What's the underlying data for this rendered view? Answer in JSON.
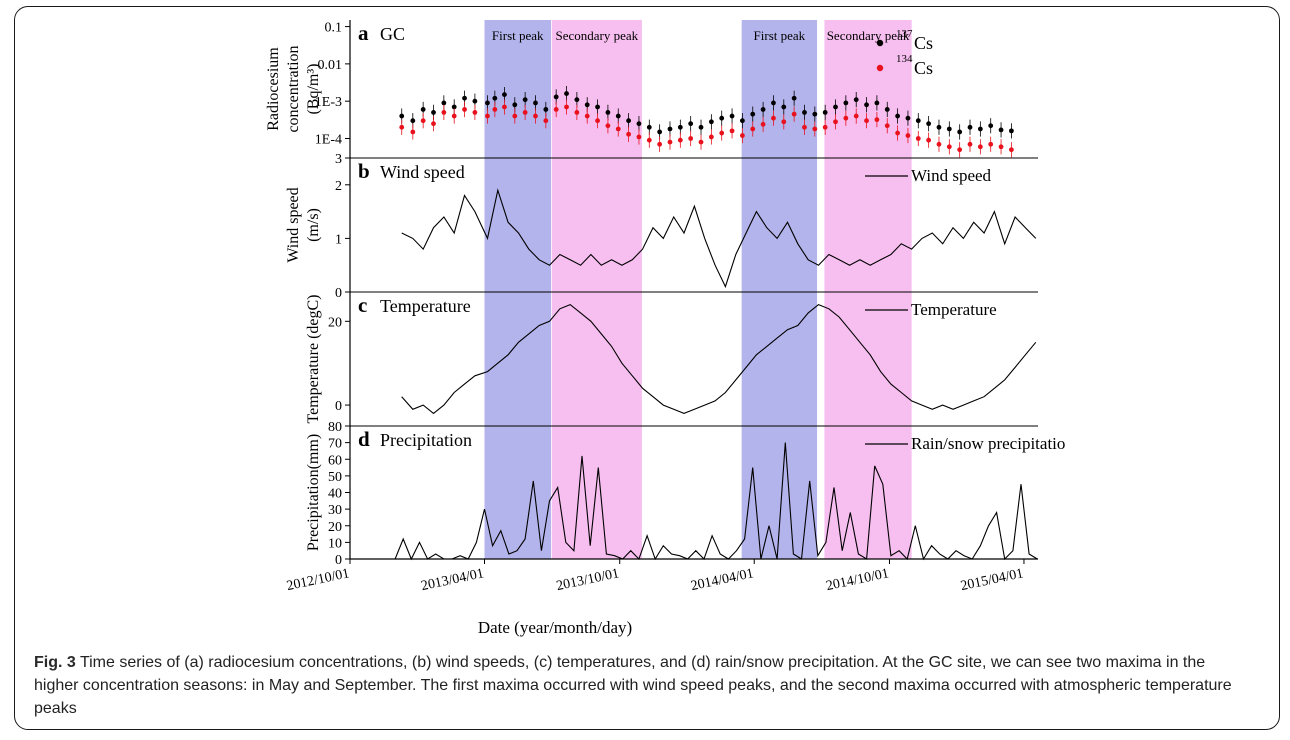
{
  "caption": {
    "label": "Fig. 3",
    "text": "Time series of (a) radiocesium concentrations, (b) wind speeds, (c) temperatures, and (d) rain/snow precipitation. At the GC site, we can see two maxima in the higher concentration seasons: in May and September. The first maxima occurred with wind speed peaks, and the second maxima occurred with atmospheric temperature peaks"
  },
  "chart_data": {
    "type": "line",
    "x_axis": {
      "label": "Date (year/month/day)",
      "range": [
        "2012/10/01",
        "2015/04/20"
      ],
      "ticks": [
        "2012/10/01",
        "2013/04/01",
        "2013/10/01",
        "2014/04/01",
        "2014/10/01",
        "2015/04/01"
      ]
    },
    "bands": [
      {
        "label": "First peak",
        "start": "2013/04/01",
        "end": "2013/06/30",
        "color": "#b4b4ec"
      },
      {
        "label": "Secondary peak",
        "start": "2013/07/01",
        "end": "2013/10/31",
        "color": "#f7bff0"
      },
      {
        "label": "First peak",
        "start": "2014/03/15",
        "end": "2014/06/25",
        "color": "#b4b4ec"
      },
      {
        "label": "Secondary peak",
        "start": "2014/07/05",
        "end": "2014/10/31",
        "color": "#f7bff0"
      }
    ],
    "panels": [
      {
        "letter": "a",
        "title": "GC",
        "ylabel_lines": [
          "Radiocesium",
          "concentration",
          "(Bq/m³)"
        ],
        "scale": "log",
        "ylim": [
          3e-05,
          0.15
        ],
        "ytick_labels": [
          "0.1",
          "0.01",
          "1E-3",
          "1E-4",
          "3"
        ],
        "legend": [
          {
            "mass": "137",
            "element": "Cs",
            "color": "#000000"
          },
          {
            "mass": "134",
            "element": "Cs",
            "color": "#e8111c"
          }
        ],
        "series": [
          {
            "name": "137Cs",
            "color": "#000000",
            "x": [
              "2012/12/10",
              "2012/12/25",
              "2013/01/08",
              "2013/01/22",
              "2013/02/05",
              "2013/02/19",
              "2013/03/05",
              "2013/03/19",
              "2013/04/05",
              "2013/04/15",
              "2013/04/28",
              "2013/05/12",
              "2013/05/26",
              "2013/06/09",
              "2013/06/23",
              "2013/07/07",
              "2013/07/21",
              "2013/08/04",
              "2013/08/18",
              "2013/09/01",
              "2013/09/15",
              "2013/09/29",
              "2013/10/13",
              "2013/10/27",
              "2013/11/10",
              "2013/11/24",
              "2013/12/08",
              "2013/12/22",
              "2014/01/05",
              "2014/01/19",
              "2014/02/02",
              "2014/02/16",
              "2014/03/02",
              "2014/03/16",
              "2014/03/30",
              "2014/04/13",
              "2014/04/27",
              "2014/05/11",
              "2014/05/25",
              "2014/06/08",
              "2014/06/22",
              "2014/07/06",
              "2014/07/20",
              "2014/08/03",
              "2014/08/17",
              "2014/08/31",
              "2014/09/14",
              "2014/09/28",
              "2014/10/12",
              "2014/10/26",
              "2014/11/09",
              "2014/11/23",
              "2014/12/07",
              "2014/12/21",
              "2015/01/04",
              "2015/01/18",
              "2015/02/01",
              "2015/02/15",
              "2015/03/01",
              "2015/03/15"
            ],
            "y": [
              0.0004,
              0.0003,
              0.0006,
              0.0005,
              0.0009,
              0.0007,
              0.0012,
              0.001,
              0.0009,
              0.0012,
              0.0015,
              0.0008,
              0.0011,
              0.0009,
              0.0006,
              0.0013,
              0.0016,
              0.0011,
              0.0008,
              0.0007,
              0.0005,
              0.0004,
              0.0003,
              0.00025,
              0.0002,
              0.00015,
              0.00018,
              0.0002,
              0.00025,
              0.0002,
              0.00028,
              0.00035,
              0.0004,
              0.0003,
              0.00045,
              0.0006,
              0.0009,
              0.0007,
              0.0012,
              0.0005,
              0.00045,
              0.0005,
              0.0007,
              0.0009,
              0.0011,
              0.0008,
              0.0009,
              0.0006,
              0.0004,
              0.00035,
              0.0003,
              0.00025,
              0.0002,
              0.00018,
              0.00015,
              0.0002,
              0.00018,
              0.00022,
              0.00017,
              0.00016
            ]
          },
          {
            "name": "134Cs",
            "color": "#e8111c",
            "x": [
              "2012/12/10",
              "2012/12/25",
              "2013/01/08",
              "2013/01/22",
              "2013/02/05",
              "2013/02/19",
              "2013/03/05",
              "2013/03/19",
              "2013/04/05",
              "2013/04/15",
              "2013/04/28",
              "2013/05/12",
              "2013/05/26",
              "2013/06/09",
              "2013/06/23",
              "2013/07/07",
              "2013/07/21",
              "2013/08/04",
              "2013/08/18",
              "2013/09/01",
              "2013/09/15",
              "2013/09/29",
              "2013/10/13",
              "2013/10/27",
              "2013/11/10",
              "2013/11/24",
              "2013/12/08",
              "2013/12/22",
              "2014/01/05",
              "2014/01/19",
              "2014/02/02",
              "2014/02/16",
              "2014/03/02",
              "2014/03/16",
              "2014/03/30",
              "2014/04/13",
              "2014/04/27",
              "2014/05/11",
              "2014/05/25",
              "2014/06/08",
              "2014/06/22",
              "2014/07/06",
              "2014/07/20",
              "2014/08/03",
              "2014/08/17",
              "2014/08/31",
              "2014/09/14",
              "2014/09/28",
              "2014/10/12",
              "2014/10/26",
              "2014/11/09",
              "2014/11/23",
              "2014/12/07",
              "2014/12/21",
              "2015/01/04",
              "2015/01/18",
              "2015/02/01",
              "2015/02/15",
              "2015/03/01",
              "2015/03/15"
            ],
            "y": [
              0.0002,
              0.00015,
              0.0003,
              0.00025,
              0.0005,
              0.0004,
              0.0006,
              0.0005,
              0.0004,
              0.0006,
              0.0007,
              0.0004,
              0.0005,
              0.0004,
              0.0003,
              0.0006,
              0.0007,
              0.0005,
              0.0004,
              0.0003,
              0.00022,
              0.00018,
              0.00013,
              0.00011,
              9e-05,
              7e-05,
              8e-05,
              9e-05,
              0.0001,
              8e-05,
              0.00011,
              0.00014,
              0.00016,
              0.00012,
              0.00018,
              0.00024,
              0.00035,
              0.00028,
              0.00045,
              0.0002,
              0.00018,
              0.0002,
              0.00028,
              0.00035,
              0.0004,
              0.0003,
              0.00032,
              0.00022,
              0.00014,
              0.00012,
              0.0001,
              9e-05,
              7e-05,
              6e-05,
              5e-05,
              7e-05,
              6e-05,
              7e-05,
              6e-05,
              5e-05
            ]
          }
        ]
      },
      {
        "letter": "b",
        "title": "Wind speed",
        "ylabel_lines": [
          "Wind speed",
          "(m/s)"
        ],
        "ylim": [
          0,
          2.5
        ],
        "yticks": [
          0,
          1,
          2
        ],
        "legend": [
          "Wind speed"
        ],
        "series": [
          {
            "name": "Wind speed",
            "x": [
              "2012/12/10",
              "2012/12/25",
              "2013/01/08",
              "2013/01/22",
              "2013/02/05",
              "2013/02/19",
              "2013/03/05",
              "2013/03/19",
              "2013/04/05",
              "2013/04/19",
              "2013/05/03",
              "2013/05/17",
              "2013/05/31",
              "2013/06/14",
              "2013/06/28",
              "2013/07/12",
              "2013/07/26",
              "2013/08/09",
              "2013/08/23",
              "2013/09/06",
              "2013/09/20",
              "2013/10/04",
              "2013/10/18",
              "2013/11/01",
              "2013/11/15",
              "2013/11/29",
              "2013/12/13",
              "2013/12/27",
              "2014/01/10",
              "2014/01/24",
              "2014/02/07",
              "2014/02/21",
              "2014/03/07",
              "2014/03/21",
              "2014/04/04",
              "2014/04/18",
              "2014/05/02",
              "2014/05/16",
              "2014/05/30",
              "2014/06/13",
              "2014/06/27",
              "2014/07/11",
              "2014/07/25",
              "2014/08/08",
              "2014/08/22",
              "2014/09/05",
              "2014/09/19",
              "2014/10/03",
              "2014/10/17",
              "2014/10/31",
              "2014/11/14",
              "2014/11/28",
              "2014/12/12",
              "2014/12/26",
              "2015/01/09",
              "2015/01/23",
              "2015/02/06",
              "2015/02/20",
              "2015/03/06",
              "2015/03/20",
              "2015/04/03",
              "2015/04/17"
            ],
            "y": [
              1.1,
              1.0,
              0.8,
              1.2,
              1.4,
              1.1,
              1.8,
              1.5,
              1.0,
              1.9,
              1.3,
              1.1,
              0.8,
              0.6,
              0.5,
              0.7,
              0.6,
              0.5,
              0.7,
              0.5,
              0.6,
              0.5,
              0.6,
              0.8,
              1.2,
              1.0,
              1.4,
              1.1,
              1.6,
              1.0,
              0.5,
              0.1,
              0.7,
              1.1,
              1.5,
              1.2,
              1.0,
              1.3,
              0.9,
              0.6,
              0.5,
              0.7,
              0.6,
              0.5,
              0.6,
              0.5,
              0.6,
              0.7,
              0.9,
              0.8,
              1.0,
              1.1,
              0.9,
              1.2,
              1.0,
              1.3,
              1.1,
              1.5,
              0.9,
              1.4,
              1.2,
              1.0
            ]
          }
        ]
      },
      {
        "letter": "c",
        "title": "Temperature",
        "ylabel_lines": [
          "Temperature (degC)"
        ],
        "ylim": [
          -5,
          27
        ],
        "yticks": [
          0,
          20
        ],
        "legend": [
          "Temperature"
        ],
        "series": [
          {
            "name": "Temperature",
            "x": [
              "2012/12/10",
              "2012/12/25",
              "2013/01/08",
              "2013/01/22",
              "2013/02/05",
              "2013/02/19",
              "2013/03/05",
              "2013/03/19",
              "2013/04/05",
              "2013/04/19",
              "2013/05/03",
              "2013/05/17",
              "2013/05/31",
              "2013/06/14",
              "2013/06/28",
              "2013/07/12",
              "2013/07/26",
              "2013/08/09",
              "2013/08/23",
              "2013/09/06",
              "2013/09/20",
              "2013/10/04",
              "2013/10/18",
              "2013/11/01",
              "2013/11/15",
              "2013/11/29",
              "2013/12/13",
              "2013/12/27",
              "2014/01/10",
              "2014/01/24",
              "2014/02/07",
              "2014/02/21",
              "2014/03/07",
              "2014/03/21",
              "2014/04/04",
              "2014/04/18",
              "2014/05/02",
              "2014/05/16",
              "2014/05/30",
              "2014/06/13",
              "2014/06/27",
              "2014/07/11",
              "2014/07/25",
              "2014/08/08",
              "2014/08/22",
              "2014/09/05",
              "2014/09/19",
              "2014/10/03",
              "2014/10/17",
              "2014/10/31",
              "2014/11/14",
              "2014/11/28",
              "2014/12/12",
              "2014/12/26",
              "2015/01/09",
              "2015/01/23",
              "2015/02/06",
              "2015/02/20",
              "2015/03/06",
              "2015/03/20",
              "2015/04/03",
              "2015/04/17"
            ],
            "y": [
              2,
              -1,
              0,
              -2,
              0,
              3,
              5,
              7,
              8,
              10,
              12,
              15,
              17,
              19,
              20,
              23,
              24,
              22,
              20,
              17,
              14,
              10,
              7,
              4,
              2,
              0,
              -1,
              -2,
              -1,
              0,
              1,
              3,
              6,
              9,
              12,
              14,
              16,
              18,
              19,
              22,
              24,
              23,
              21,
              18,
              15,
              12,
              8,
              5,
              3,
              1,
              0,
              -1,
              0,
              -1,
              0,
              1,
              2,
              4,
              6,
              9,
              12,
              15
            ]
          }
        ]
      },
      {
        "letter": "d",
        "title": "Precipitation",
        "ylabel_lines": [
          "Precipitation(mm)"
        ],
        "ylim": [
          0,
          80
        ],
        "yticks": [
          0,
          10,
          20,
          30,
          40,
          50,
          60,
          70,
          80
        ],
        "legend": [
          "Rain/snow precipitatio"
        ],
        "series": [
          {
            "name": "Rain/snow precipitatio",
            "x": [
              "2012/12/01",
              "2012/12/12",
              "2012/12/23",
              "2013/01/03",
              "2013/01/14",
              "2013/01/25",
              "2013/02/05",
              "2013/02/16",
              "2013/02/27",
              "2013/03/10",
              "2013/03/21",
              "2013/04/01",
              "2013/04/12",
              "2013/04/23",
              "2013/05/04",
              "2013/05/15",
              "2013/05/26",
              "2013/06/06",
              "2013/06/17",
              "2013/06/28",
              "2013/07/09",
              "2013/07/20",
              "2013/07/31",
              "2013/08/11",
              "2013/08/22",
              "2013/09/02",
              "2013/09/13",
              "2013/09/24",
              "2013/10/05",
              "2013/10/16",
              "2013/10/27",
              "2013/11/07",
              "2013/11/18",
              "2013/11/29",
              "2013/12/10",
              "2013/12/21",
              "2014/01/01",
              "2014/01/12",
              "2014/01/23",
              "2014/02/03",
              "2014/02/14",
              "2014/02/25",
              "2014/03/08",
              "2014/03/19",
              "2014/03/30",
              "2014/04/10",
              "2014/04/21",
              "2014/05/02",
              "2014/05/13",
              "2014/05/24",
              "2014/06/04",
              "2014/06/15",
              "2014/06/26",
              "2014/07/07",
              "2014/07/18",
              "2014/07/29",
              "2014/08/09",
              "2014/08/20",
              "2014/08/31",
              "2014/09/11",
              "2014/09/22",
              "2014/10/03",
              "2014/10/14",
              "2014/10/25",
              "2014/11/05",
              "2014/11/16",
              "2014/11/27",
              "2014/12/08",
              "2014/12/19",
              "2014/12/30",
              "2015/01/10",
              "2015/01/21",
              "2015/02/01",
              "2015/02/12",
              "2015/02/23",
              "2015/03/06",
              "2015/03/17",
              "2015/03/28",
              "2015/04/08",
              "2015/04/19"
            ],
            "y": [
              0,
              12,
              0,
              10,
              0,
              3,
              0,
              0,
              2,
              0,
              10,
              30,
              8,
              17,
              3,
              5,
              12,
              47,
              5,
              35,
              43,
              10,
              5,
              62,
              8,
              55,
              3,
              2,
              0,
              5,
              0,
              14,
              0,
              8,
              3,
              2,
              0,
              5,
              0,
              14,
              3,
              0,
              5,
              12,
              55,
              0,
              20,
              0,
              70,
              3,
              0,
              47,
              2,
              10,
              43,
              5,
              28,
              3,
              0,
              56,
              45,
              2,
              5,
              0,
              20,
              0,
              8,
              3,
              0,
              5,
              2,
              0,
              8,
              20,
              28,
              0,
              5,
              45,
              3,
              0
            ]
          }
        ]
      }
    ]
  }
}
